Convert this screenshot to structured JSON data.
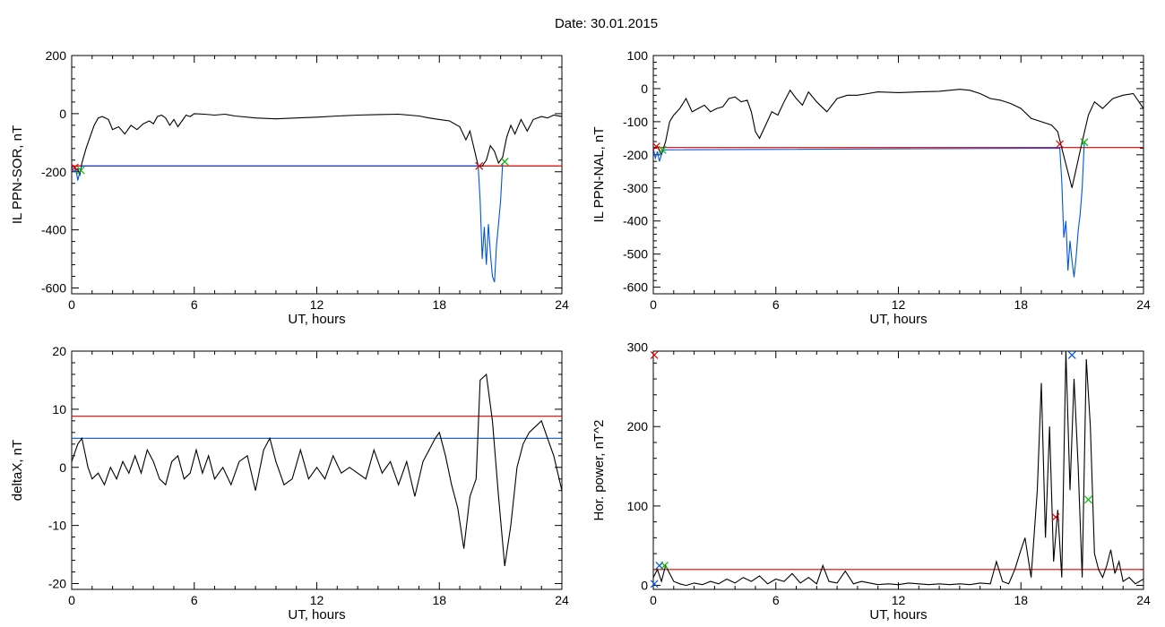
{
  "header": {
    "title": "Date:  30.01.2015"
  },
  "chart_data": [
    {
      "id": "p1",
      "type": "line",
      "ylabel": "IL PPN-SOR, nT",
      "xlabel": "UT, hours",
      "xlim": [
        0,
        24
      ],
      "ylim": [
        -620,
        200
      ],
      "x_ticks": [
        0,
        6,
        12,
        18,
        24
      ],
      "y_ticks": [
        200,
        0,
        -200,
        -400,
        -600
      ],
      "series": [
        {
          "color": "#000000",
          "x": [
            0,
            0.1,
            0.2,
            0.3,
            0.4,
            0.5,
            0.7,
            0.9,
            1.1,
            1.3,
            1.5,
            1.8,
            2.0,
            2.3,
            2.6,
            2.9,
            3.2,
            3.5,
            3.8,
            4.0,
            4.2,
            4.4,
            4.6,
            4.8,
            5.0,
            5.2,
            5.4,
            5.6,
            5.8,
            6.0,
            6.5,
            7,
            7.5,
            8,
            9,
            10,
            11,
            12,
            13,
            14,
            15,
            16,
            17,
            17.5,
            18,
            18.5,
            19,
            19.3,
            19.5,
            19.7,
            19.9,
            20.1,
            20.3,
            20.5,
            20.7,
            20.9,
            21.1,
            21.3,
            21.5,
            21.7,
            22,
            22.3,
            22.6,
            23,
            23.3,
            23.6,
            24
          ],
          "y": [
            -185,
            -180,
            -195,
            -190,
            -210,
            -170,
            -120,
            -80,
            -40,
            -15,
            -10,
            -20,
            -55,
            -45,
            -70,
            -40,
            -55,
            -35,
            -25,
            -35,
            -10,
            -5,
            -15,
            -40,
            -20,
            -45,
            -25,
            -5,
            -10,
            0,
            -2,
            -5,
            -2,
            -8,
            -15,
            -18,
            -15,
            -12,
            -8,
            -5,
            -3,
            -2,
            -8,
            -15,
            -20,
            -25,
            -45,
            -90,
            -60,
            -120,
            -180,
            -180,
            -160,
            -110,
            -130,
            -170,
            -150,
            -80,
            -40,
            -70,
            -20,
            -60,
            -20,
            -10,
            -15,
            -5,
            -10
          ]
        },
        {
          "color": "#0055dd",
          "x": [
            0,
            0.1,
            0.2,
            0.3,
            0.4,
            0.5,
            19.9,
            20.0,
            20.1,
            20.2,
            20.3,
            20.4,
            20.5,
            20.6,
            20.7,
            20.8,
            20.9,
            21.0,
            21.1
          ],
          "y": [
            -185,
            -200,
            -190,
            -230,
            -200,
            -180,
            -180,
            -300,
            -500,
            -390,
            -520,
            -380,
            -480,
            -560,
            -580,
            -450,
            -380,
            -300,
            -170
          ]
        }
      ],
      "hlines": [
        {
          "y": -180,
          "color": "#dd0000"
        }
      ],
      "markers": [
        {
          "x": 0.15,
          "y": -185,
          "color": "#dd0000"
        },
        {
          "x": 0.45,
          "y": -195,
          "color": "#00bb00"
        },
        {
          "x": 19.95,
          "y": -180,
          "color": "#dd0000"
        },
        {
          "x": 21.2,
          "y": -165,
          "color": "#00bb00"
        }
      ]
    },
    {
      "id": "p2",
      "type": "line",
      "ylabel": "IL PPN-NAL, nT",
      "xlabel": "UT, hours",
      "xlim": [
        0,
        24
      ],
      "ylim": [
        -620,
        100
      ],
      "x_ticks": [
        0,
        6,
        12,
        18,
        24
      ],
      "y_ticks": [
        100,
        0,
        -100,
        -200,
        -300,
        -400,
        -500,
        -600
      ],
      "series": [
        {
          "color": "#000000",
          "x": [
            0,
            0.2,
            0.4,
            0.6,
            0.8,
            1.0,
            1.3,
            1.6,
            1.9,
            2.2,
            2.5,
            2.8,
            3.1,
            3.4,
            3.7,
            4.0,
            4.3,
            4.6,
            4.8,
            5.0,
            5.2,
            5.5,
            5.8,
            6.1,
            6.4,
            6.7,
            7.0,
            7.3,
            7.6,
            8.0,
            8.5,
            9,
            9.5,
            10,
            10.5,
            11,
            12,
            13,
            14,
            15,
            15.5,
            16,
            16.5,
            17,
            17.5,
            18,
            18.5,
            19,
            19.5,
            19.8,
            20.0,
            20.5,
            21,
            21.3,
            21.6,
            22,
            22.5,
            23,
            23.5,
            24
          ],
          "y": [
            -180,
            -175,
            -200,
            -160,
            -100,
            -80,
            -60,
            -30,
            -70,
            -60,
            -50,
            -70,
            -60,
            -55,
            -30,
            -25,
            -40,
            -35,
            -70,
            -130,
            -150,
            -110,
            -70,
            -80,
            -40,
            -5,
            -30,
            -50,
            -10,
            -40,
            -70,
            -30,
            -20,
            -20,
            -15,
            -10,
            -12,
            -10,
            -8,
            -2,
            -5,
            -15,
            -30,
            -35,
            -45,
            -60,
            -90,
            -100,
            -110,
            -130,
            -180,
            -300,
            -160,
            -80,
            -40,
            -60,
            -30,
            -20,
            -15,
            -60
          ]
        },
        {
          "color": "#0055dd",
          "x": [
            0,
            0.1,
            0.2,
            0.3,
            0.4,
            0.5,
            19.9,
            20.0,
            20.1,
            20.2,
            20.3,
            20.4,
            20.5,
            20.6,
            20.7,
            20.8,
            20.9,
            21.0,
            21.1
          ],
          "y": [
            -180,
            -210,
            -190,
            -220,
            -200,
            -185,
            -180,
            -280,
            -450,
            -400,
            -550,
            -460,
            -520,
            -570,
            -510,
            -430,
            -380,
            -300,
            -165
          ]
        }
      ],
      "hlines": [
        {
          "y": -178,
          "color": "#dd0000"
        }
      ],
      "markers": [
        {
          "x": 0.15,
          "y": -175,
          "color": "#dd0000"
        },
        {
          "x": 0.45,
          "y": -185,
          "color": "#00bb00"
        },
        {
          "x": 19.9,
          "y": -168,
          "color": "#dd0000"
        },
        {
          "x": 21.1,
          "y": -162,
          "color": "#00bb00"
        }
      ]
    },
    {
      "id": "p3",
      "type": "line",
      "ylabel": "deltaX, nT",
      "xlabel": "UT, hours",
      "xlim": [
        0,
        24
      ],
      "ylim": [
        -21,
        20
      ],
      "x_ticks": [
        0,
        6,
        12,
        18,
        24
      ],
      "y_ticks": [
        20,
        10,
        0,
        -10,
        -20
      ],
      "series": [
        {
          "color": "#000000",
          "x": [
            0,
            0.3,
            0.5,
            0.8,
            1.0,
            1.3,
            1.6,
            1.9,
            2.2,
            2.5,
            2.8,
            3.1,
            3.4,
            3.7,
            4.0,
            4.3,
            4.6,
            4.9,
            5.2,
            5.5,
            5.8,
            6.1,
            6.4,
            6.7,
            7.0,
            7.4,
            7.8,
            8.2,
            8.6,
            9.0,
            9.4,
            9.7,
            10.0,
            10.4,
            10.8,
            11.2,
            11.6,
            12.0,
            12.4,
            12.8,
            13.2,
            13.6,
            14.0,
            14.4,
            14.8,
            15.2,
            15.6,
            16.0,
            16.4,
            16.8,
            17.2,
            17.5,
            17.8,
            18.0,
            18.3,
            18.6,
            18.9,
            19.2,
            19.5,
            19.8,
            20.0,
            20.3,
            20.6,
            20.9,
            21.2,
            21.5,
            21.8,
            22.1,
            22.4,
            22.7,
            23.0,
            23.3,
            23.6,
            24
          ],
          "y": [
            1,
            4,
            5,
            0,
            -2,
            -1,
            -3,
            0,
            -2,
            1,
            -1,
            2,
            -1,
            3,
            1,
            -2,
            -3,
            1,
            2,
            -2,
            -1,
            3,
            -1,
            2,
            -2,
            0,
            -3,
            1,
            2,
            -4,
            3,
            5,
            1,
            -3,
            -2,
            3,
            -2,
            0,
            -2,
            2,
            -1,
            0,
            -1,
            -2,
            3,
            -1,
            1,
            -3,
            1,
            -5,
            1,
            3,
            5,
            6,
            2,
            -3,
            -7,
            -14,
            -5,
            -2,
            15,
            16,
            8,
            -5,
            -17,
            -10,
            0,
            4,
            6,
            7,
            8,
            5,
            2,
            -4
          ]
        }
      ],
      "hlines": [
        {
          "y": 8.8,
          "color": "#dd0000"
        },
        {
          "y": 5,
          "color": "#0055dd"
        }
      ],
      "markers": []
    },
    {
      "id": "p4",
      "type": "line",
      "ylabel": "Hor. power, nT^2",
      "xlabel": "UT, hours",
      "xlim": [
        0,
        24
      ],
      "ylim": [
        -5,
        295
      ],
      "x_ticks": [
        0,
        6,
        12,
        18,
        24
      ],
      "y_ticks": [
        300,
        200,
        100,
        0
      ],
      "series": [
        {
          "color": "#000000",
          "x": [
            0,
            0.2,
            0.4,
            0.6,
            0.8,
            1.0,
            1.3,
            1.6,
            2.0,
            2.4,
            2.8,
            3.2,
            3.6,
            4.0,
            4.4,
            4.8,
            5.2,
            5.6,
            6.0,
            6.4,
            6.8,
            7.2,
            7.6,
            8.0,
            8.3,
            8.6,
            9.0,
            9.4,
            9.8,
            10.2,
            10.6,
            11.0,
            11.5,
            12.0,
            12.5,
            13.0,
            13.5,
            14.0,
            14.5,
            15.0,
            15.5,
            16.0,
            16.5,
            16.8,
            17.1,
            17.4,
            17.7,
            18.0,
            18.2,
            18.5,
            18.8,
            19.0,
            19.2,
            19.4,
            19.6,
            19.8,
            20.0,
            20.2,
            20.4,
            20.6,
            20.8,
            21.0,
            21.2,
            21.4,
            21.6,
            21.8,
            22.0,
            22.2,
            22.4,
            22.6,
            22.8,
            23.0,
            23.3,
            23.6,
            24
          ],
          "y": [
            10,
            20,
            5,
            25,
            15,
            5,
            2,
            0,
            3,
            1,
            5,
            2,
            8,
            3,
            10,
            5,
            12,
            2,
            8,
            5,
            15,
            3,
            10,
            2,
            25,
            5,
            3,
            18,
            2,
            5,
            3,
            1,
            2,
            1,
            3,
            2,
            1,
            2,
            1,
            2,
            1,
            3,
            2,
            30,
            5,
            2,
            20,
            45,
            60,
            10,
            120,
            255,
            60,
            200,
            30,
            95,
            10,
            295,
            120,
            260,
            150,
            10,
            285,
            200,
            40,
            20,
            10,
            25,
            45,
            15,
            30,
            5,
            10,
            2,
            8
          ]
        }
      ],
      "hlines": [
        {
          "y": 20,
          "color": "#dd0000"
        }
      ],
      "markers": [
        {
          "x": 0.05,
          "y": 290,
          "color": "#dd0000"
        },
        {
          "x": 0.05,
          "y": 2,
          "color": "#0055dd"
        },
        {
          "x": 0.3,
          "y": 25,
          "color": "#0055dd"
        },
        {
          "x": 0.55,
          "y": 25,
          "color": "#00bb00"
        },
        {
          "x": 19.7,
          "y": 86,
          "color": "#dd0000"
        },
        {
          "x": 20.5,
          "y": 290,
          "color": "#0055dd"
        },
        {
          "x": 21.3,
          "y": 108,
          "color": "#00bb00"
        }
      ]
    }
  ]
}
